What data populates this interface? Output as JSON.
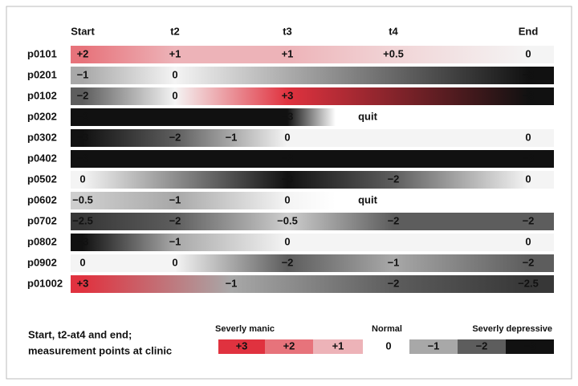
{
  "chart_data": {
    "type": "gradient-timeline",
    "xticks": [
      {
        "value": 1,
        "label": "Start"
      },
      {
        "value": 2,
        "label": "t2"
      },
      {
        "value": 3,
        "label": "t3"
      },
      {
        "value": 4,
        "label": "t4"
      },
      {
        "value": 5,
        "label": "End"
      }
    ],
    "series": [
      {
        "name": "p0101",
        "x": [
          1,
          2,
          3,
          4,
          5
        ],
        "values": [
          2,
          1,
          1,
          0.5,
          0
        ],
        "value_labels": [
          "+2",
          "+1",
          "+1",
          "+0.5",
          "0"
        ]
      },
      {
        "name": "p0201",
        "x": [
          1,
          2,
          5
        ],
        "values": [
          -1,
          0,
          -3
        ],
        "value_labels": [
          "−1",
          "0",
          "−3"
        ]
      },
      {
        "name": "p0102",
        "x": [
          1,
          2,
          3,
          5
        ],
        "values": [
          -2,
          0,
          3,
          -3
        ],
        "value_labels": [
          "−2",
          "0",
          "+3",
          "−3"
        ]
      },
      {
        "name": "p0202",
        "x": [
          1,
          3
        ],
        "values": [
          -3,
          -3
        ],
        "value_labels": [
          "−3",
          "−3"
        ],
        "end_label": "quit"
      },
      {
        "name": "p0302",
        "x": [
          1,
          2,
          2.5,
          3,
          5
        ],
        "values": [
          -3,
          -2,
          -1,
          0,
          0
        ],
        "value_labels": [
          "−3",
          "−2",
          "−1",
          "0",
          "0"
        ]
      },
      {
        "name": "p0402",
        "x": [
          1,
          3,
          5
        ],
        "values": [
          -3,
          -3,
          -3
        ],
        "value_labels": [
          "−3",
          "−3",
          "−3"
        ]
      },
      {
        "name": "p0502",
        "x": [
          1,
          3,
          4,
          5
        ],
        "values": [
          0,
          -3,
          -2,
          0
        ],
        "value_labels": [
          "0",
          "−3",
          "−2",
          "0"
        ]
      },
      {
        "name": "p0602",
        "x": [
          1,
          2,
          3
        ],
        "values": [
          -0.5,
          -1,
          0
        ],
        "value_labels": [
          "−0.5",
          "−1",
          "0"
        ],
        "end_label": "quit"
      },
      {
        "name": "p0702",
        "x": [
          1,
          2,
          3,
          4,
          5
        ],
        "values": [
          -2.5,
          -2,
          -0.5,
          -2,
          -2
        ],
        "value_labels": [
          "−2.5",
          "−2",
          "−0.5",
          "−2",
          "−2"
        ]
      },
      {
        "name": "p0802",
        "x": [
          1,
          2,
          3,
          5
        ],
        "values": [
          -3,
          -1,
          0,
          0
        ],
        "value_labels": [
          "−3",
          "−1",
          "0",
          "0"
        ]
      },
      {
        "name": "p0902",
        "x": [
          1,
          2,
          3,
          4,
          5
        ],
        "values": [
          0,
          0,
          -2,
          -1,
          -2
        ],
        "value_labels": [
          "0",
          "0",
          "−2",
          "−1",
          "−2"
        ]
      },
      {
        "name": "p01002",
        "x": [
          1,
          2.5,
          4,
          5
        ],
        "values": [
          3,
          -1,
          -2,
          -2.5
        ],
        "value_labels": [
          "+3",
          "−1",
          "−2",
          "−2.5"
        ]
      }
    ],
    "legend": {
      "groups": [
        "Severly manic",
        "Normal",
        "Severly depressive"
      ],
      "values": [
        3,
        2,
        1,
        0,
        -1,
        -2,
        -3
      ],
      "value_labels": [
        "+3",
        "+2",
        "+1",
        "0",
        "−1",
        "−2",
        "−3"
      ]
    },
    "note": [
      "Start, t2-at4 and end;",
      "measurement points at clinic"
    ],
    "colors": {
      "positive": "#e0323f",
      "neutral": "#f4f4f4",
      "negative": "#111111"
    }
  }
}
